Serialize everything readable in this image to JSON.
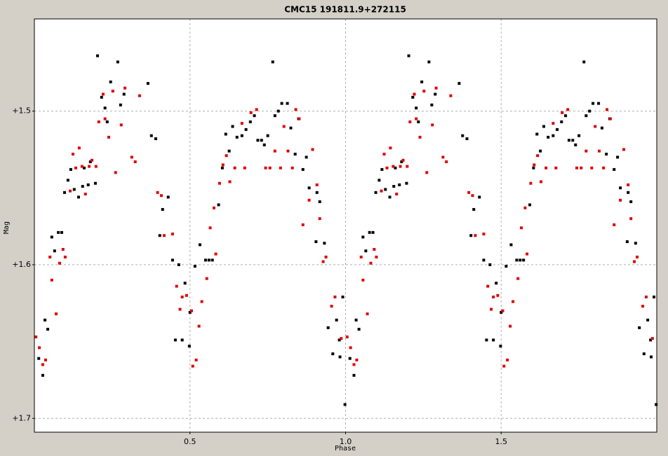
{
  "chart_data": {
    "type": "scatter",
    "title": "CMC15 191811.9+272115",
    "x_label": "Phase",
    "y_label": "Mag",
    "xlim": [
      0,
      2
    ],
    "ylim": [
      1.44,
      1.709
    ],
    "y_inverted": true,
    "xticks": [
      0.5,
      {
        "value": 1,
        "label": "1.0"
      },
      1.5
    ],
    "yticks": [
      {
        "value": 1.5,
        "label": "+1.5"
      },
      {
        "value": 1.6,
        "label": "+1.6"
      },
      {
        "value": 1.7,
        "label": "+1.7"
      }
    ],
    "grid": true,
    "series": [
      {
        "color": "#000000",
        "x": [
          0.014,
          0.027,
          0.034,
          0.043,
          0.056,
          0.065,
          0.077,
          0.088,
          0.097,
          0.108,
          0.117,
          0.128,
          0.142,
          0.155,
          0.16,
          0.173,
          0.18,
          0.196,
          0.203,
          0.216,
          0.227,
          0.234,
          0.245,
          0.268,
          0.277,
          0.288,
          0.365,
          0.376,
          0.39,
          0.403,
          0.412,
          0.43,
          0.444,
          0.464,
          0.453,
          0.475,
          0.484,
          0.498,
          0.5,
          0.516,
          0.532,
          0.55,
          0.561,
          0.572,
          0.592,
          0.604,
          0.615,
          0.626,
          0.637,
          0.651,
          0.667,
          0.68,
          0.694,
          0.707,
          0.718,
          0.73,
          0.739,
          0.75,
          0.766,
          0.773,
          0.784,
          0.795,
          0.813,
          0.824,
          0.838,
          0.849,
          0.863,
          0.874,
          0.883,
          0.908,
          0.917,
          0.905,
          0.932,
          0.944,
          0.959,
          0.971,
          0.982,
          0.991,
          0.98,
          0.998,
          1.014,
          1.027,
          1.034,
          1.043,
          1.056,
          1.065,
          1.077,
          1.088,
          1.097,
          1.108,
          1.117,
          1.128,
          1.142,
          1.155,
          1.16,
          1.173,
          1.18,
          1.196,
          1.203,
          1.216,
          1.227,
          1.234,
          1.245,
          1.268,
          1.277,
          1.288,
          1.365,
          1.376,
          1.39,
          1.403,
          1.412,
          1.43,
          1.444,
          1.464,
          1.453,
          1.475,
          1.484,
          1.498,
          1.5,
          1.516,
          1.532,
          1.55,
          1.561,
          1.572,
          1.592,
          1.604,
          1.615,
          1.626,
          1.637,
          1.651,
          1.667,
          1.68,
          1.694,
          1.707,
          1.718,
          1.73,
          1.739,
          1.75,
          1.766,
          1.773,
          1.784,
          1.795,
          1.813,
          1.824,
          1.838,
          1.849,
          1.863,
          1.874,
          1.883,
          1.908,
          1.917,
          1.905,
          1.932,
          1.944,
          1.959,
          1.971,
          1.982,
          1.991,
          1.98,
          1.998
        ],
        "values": [
          1.661,
          1.672,
          1.636,
          1.642,
          1.582,
          1.591,
          1.579,
          1.579,
          1.553,
          1.545,
          1.538,
          1.551,
          1.556,
          1.549,
          1.537,
          1.548,
          1.533,
          1.547,
          1.464,
          1.491,
          1.498,
          1.507,
          1.481,
          1.468,
          1.496,
          1.489,
          1.482,
          1.516,
          1.518,
          1.581,
          1.564,
          1.556,
          1.597,
          1.6,
          1.649,
          1.649,
          1.612,
          1.653,
          1.631,
          1.601,
          1.587,
          1.597,
          1.597,
          1.597,
          1.561,
          1.537,
          1.515,
          1.526,
          1.51,
          1.517,
          1.516,
          1.512,
          1.507,
          1.503,
          1.519,
          1.519,
          1.522,
          1.516,
          1.468,
          1.503,
          1.5,
          1.495,
          1.495,
          1.511,
          1.528,
          1.505,
          1.538,
          1.53,
          1.55,
          1.553,
          1.559,
          1.585,
          1.586,
          1.641,
          1.658,
          1.636,
          1.66,
          1.621,
          1.649,
          1.691,
          1.661,
          1.672,
          1.636,
          1.642,
          1.582,
          1.591,
          1.579,
          1.579,
          1.553,
          1.545,
          1.538,
          1.551,
          1.556,
          1.549,
          1.537,
          1.548,
          1.533,
          1.547,
          1.464,
          1.491,
          1.498,
          1.507,
          1.481,
          1.468,
          1.496,
          1.489,
          1.482,
          1.516,
          1.518,
          1.581,
          1.564,
          1.556,
          1.597,
          1.6,
          1.649,
          1.649,
          1.612,
          1.653,
          1.631,
          1.601,
          1.587,
          1.597,
          1.597,
          1.597,
          1.561,
          1.537,
          1.515,
          1.526,
          1.51,
          1.517,
          1.516,
          1.512,
          1.507,
          1.503,
          1.519,
          1.519,
          1.522,
          1.516,
          1.468,
          1.503,
          1.5,
          1.495,
          1.495,
          1.511,
          1.528,
          1.505,
          1.538,
          1.53,
          1.55,
          1.553,
          1.559,
          1.585,
          1.586,
          1.641,
          1.658,
          1.636,
          1.66,
          1.621,
          1.649,
          1.691
        ]
      },
      {
        "color": "#e00000",
        "x": [
          0.005,
          0.016,
          0.027,
          0.036,
          0.05,
          0.056,
          0.07,
          0.081,
          0.092,
          0.099,
          0.115,
          0.124,
          0.133,
          0.144,
          0.153,
          0.164,
          0.176,
          0.185,
          0.198,
          0.207,
          0.221,
          0.227,
          0.239,
          0.252,
          0.261,
          0.279,
          0.291,
          0.313,
          0.324,
          0.338,
          0.396,
          0.408,
          0.417,
          0.444,
          0.457,
          0.468,
          0.475,
          0.489,
          0.505,
          0.509,
          0.52,
          0.529,
          0.538,
          0.554,
          0.565,
          0.577,
          0.583,
          0.595,
          0.606,
          0.617,
          0.628,
          0.644,
          0.667,
          0.676,
          0.696,
          0.714,
          0.743,
          0.757,
          0.773,
          0.791,
          0.802,
          0.815,
          0.829,
          0.84,
          0.851,
          0.863,
          0.883,
          0.894,
          0.908,
          0.917,
          0.928,
          0.937,
          0.955,
          0.966,
          0.986,
          1.005,
          1.016,
          1.027,
          1.036,
          1.05,
          1.056,
          1.07,
          1.081,
          1.092,
          1.099,
          1.115,
          1.124,
          1.133,
          1.144,
          1.153,
          1.164,
          1.176,
          1.185,
          1.198,
          1.207,
          1.221,
          1.227,
          1.239,
          1.252,
          1.261,
          1.279,
          1.291,
          1.313,
          1.324,
          1.338,
          1.396,
          1.408,
          1.417,
          1.444,
          1.457,
          1.468,
          1.475,
          1.489,
          1.505,
          1.509,
          1.52,
          1.529,
          1.538,
          1.554,
          1.565,
          1.577,
          1.583,
          1.595,
          1.606,
          1.617,
          1.628,
          1.644,
          1.667,
          1.676,
          1.696,
          1.714,
          1.743,
          1.757,
          1.773,
          1.791,
          1.802,
          1.815,
          1.829,
          1.84,
          1.851,
          1.863,
          1.883,
          1.894,
          1.908,
          1.917,
          1.928,
          1.937,
          1.955,
          1.966,
          1.986
        ],
        "values": [
          1.647,
          1.654,
          1.665,
          1.662,
          1.595,
          1.61,
          1.632,
          1.599,
          1.59,
          1.595,
          1.552,
          1.528,
          1.537,
          1.524,
          1.536,
          1.554,
          1.536,
          1.532,
          1.536,
          1.507,
          1.489,
          1.505,
          1.517,
          1.487,
          1.54,
          1.509,
          1.485,
          1.53,
          1.533,
          1.49,
          1.553,
          1.555,
          1.581,
          1.58,
          1.614,
          1.629,
          1.621,
          1.62,
          1.63,
          1.666,
          1.662,
          1.64,
          1.624,
          1.609,
          1.576,
          1.563,
          1.593,
          1.547,
          1.535,
          1.529,
          1.546,
          1.537,
          1.508,
          1.537,
          1.501,
          1.499,
          1.537,
          1.537,
          1.526,
          1.537,
          1.51,
          1.526,
          1.537,
          1.499,
          1.505,
          1.574,
          1.558,
          1.525,
          1.548,
          1.57,
          1.598,
          1.595,
          1.627,
          1.621,
          1.648,
          1.647,
          1.654,
          1.665,
          1.662,
          1.595,
          1.61,
          1.632,
          1.599,
          1.59,
          1.595,
          1.552,
          1.528,
          1.537,
          1.524,
          1.536,
          1.554,
          1.536,
          1.532,
          1.536,
          1.507,
          1.489,
          1.505,
          1.517,
          1.487,
          1.54,
          1.509,
          1.485,
          1.53,
          1.533,
          1.49,
          1.553,
          1.555,
          1.581,
          1.58,
          1.614,
          1.629,
          1.621,
          1.62,
          1.63,
          1.666,
          1.662,
          1.64,
          1.624,
          1.609,
          1.576,
          1.563,
          1.593,
          1.547,
          1.535,
          1.529,
          1.546,
          1.537,
          1.508,
          1.537,
          1.501,
          1.499,
          1.537,
          1.537,
          1.526,
          1.537,
          1.51,
          1.526,
          1.537,
          1.499,
          1.505,
          1.574,
          1.558,
          1.525,
          1.548,
          1.57,
          1.598,
          1.595,
          1.627,
          1.621,
          1.648
        ]
      }
    ]
  }
}
